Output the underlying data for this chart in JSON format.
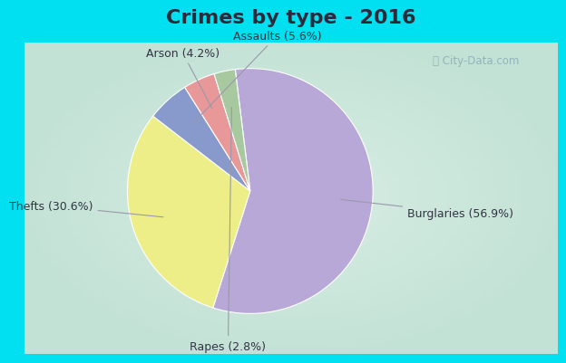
{
  "title": "Crimes by type - 2016",
  "slices": [
    {
      "label": "Burglaries (56.9%)",
      "value": 56.9,
      "color": "#b8a8d8"
    },
    {
      "label": "Thefts (30.6%)",
      "value": 30.6,
      "color": "#eeee88"
    },
    {
      "label": "Assaults (5.6%)",
      "value": 5.6,
      "color": "#8899cc"
    },
    {
      "label": "Arson (4.2%)",
      "value": 4.2,
      "color": "#e89898"
    },
    {
      "label": "Rapes (2.8%)",
      "value": 2.8,
      "color": "#a8c8a0"
    }
  ],
  "bg_cyan": "#00e0f0",
  "bg_center": "#d8ede4",
  "bg_edge": "#b0d8c8",
  "title_fontsize": 16,
  "label_fontsize": 9,
  "watermark": "ⓘ City-Data.com",
  "title_color": "#2a2a3a",
  "label_color": "#333344"
}
